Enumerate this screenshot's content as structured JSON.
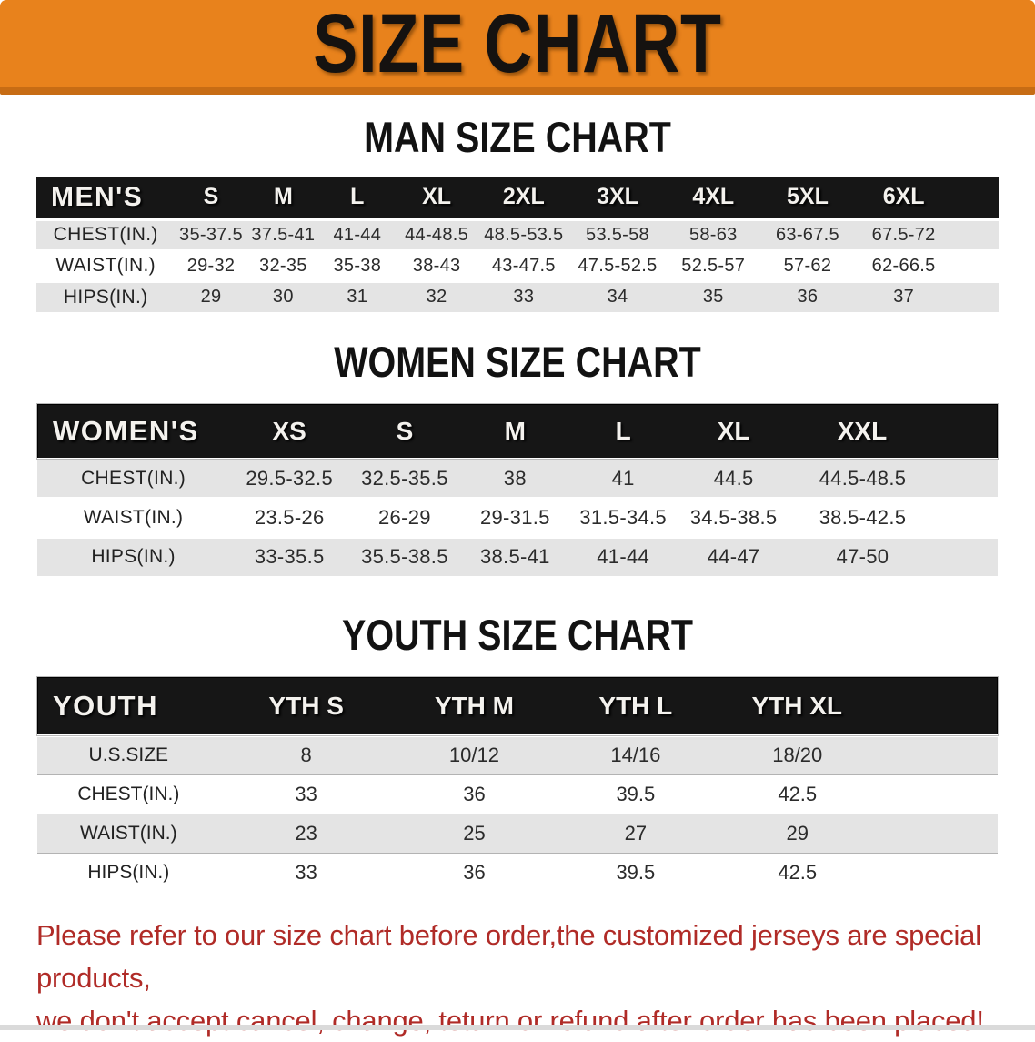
{
  "banner": {
    "title": "SIZE CHART"
  },
  "colors": {
    "banner_orange": "#E8821C",
    "banner_edge_dark": "#C76C14",
    "table_header_black": "#161616",
    "row_stripe_gray": "#E4E4E4",
    "disclaimer_red": "#B02B27"
  },
  "sections": [
    {
      "title": "MAN SIZE CHART",
      "table": {
        "header_label": "MEN'S",
        "columns": [
          "S",
          "M",
          "L",
          "XL",
          "2XL",
          "3XL",
          "4XL",
          "5XL",
          "6XL"
        ],
        "rows": [
          {
            "label": "CHEST(IN.)",
            "values": [
              "35-37.5",
              "37.5-41",
              "41-44",
              "44-48.5",
              "48.5-53.5",
              "53.5-58",
              "58-63",
              "63-67.5",
              "67.5-72"
            ]
          },
          {
            "label": "WAIST(IN.)",
            "values": [
              "29-32",
              "32-35",
              "35-38",
              "38-43",
              "43-47.5",
              "47.5-52.5",
              "52.5-57",
              "57-62",
              "62-66.5"
            ]
          },
          {
            "label": "HIPS(IN.)",
            "values": [
              "29",
              "30",
              "31",
              "32",
              "33",
              "34",
              "35",
              "36",
              "37"
            ]
          }
        ]
      }
    },
    {
      "title": "WOMEN SIZE CHART",
      "table": {
        "header_label": "WOMEN'S",
        "columns": [
          "XS",
          "S",
          "M",
          "L",
          "XL",
          "XXL"
        ],
        "rows": [
          {
            "label": "CHEST(IN.)",
            "values": [
              "29.5-32.5",
              "32.5-35.5",
              "38",
              "41",
              "44.5",
              "44.5-48.5"
            ]
          },
          {
            "label": "WAIST(IN.)",
            "values": [
              "23.5-26",
              "26-29",
              "29-31.5",
              "31.5-34.5",
              "34.5-38.5",
              "38.5-42.5"
            ]
          },
          {
            "label": "HIPS(IN.)",
            "values": [
              "33-35.5",
              "35.5-38.5",
              "38.5-41",
              "41-44",
              "44-47",
              "47-50"
            ]
          }
        ]
      }
    },
    {
      "title": "YOUTH SIZE CHART",
      "table": {
        "header_label": "YOUTH",
        "columns": [
          "YTH S",
          "YTH M",
          "YTH L",
          "YTH XL"
        ],
        "rows": [
          {
            "label": "U.S.SIZE",
            "values": [
              "8",
              "10/12",
              "14/16",
              "18/20"
            ]
          },
          {
            "label": "CHEST(IN.)",
            "values": [
              "33",
              "36",
              "39.5",
              "42.5"
            ]
          },
          {
            "label": "WAIST(IN.)",
            "values": [
              "23",
              "25",
              "27",
              "29"
            ]
          },
          {
            "label": "HIPS(IN.)",
            "values": [
              "33",
              "36",
              "39.5",
              "42.5"
            ]
          }
        ]
      }
    }
  ],
  "disclaimer": {
    "line1": "Please refer to our size chart before order,the customized jerseys are special products,",
    "line2": "we don't accept cancel, change, teturn or refund after order has been placed!"
  }
}
